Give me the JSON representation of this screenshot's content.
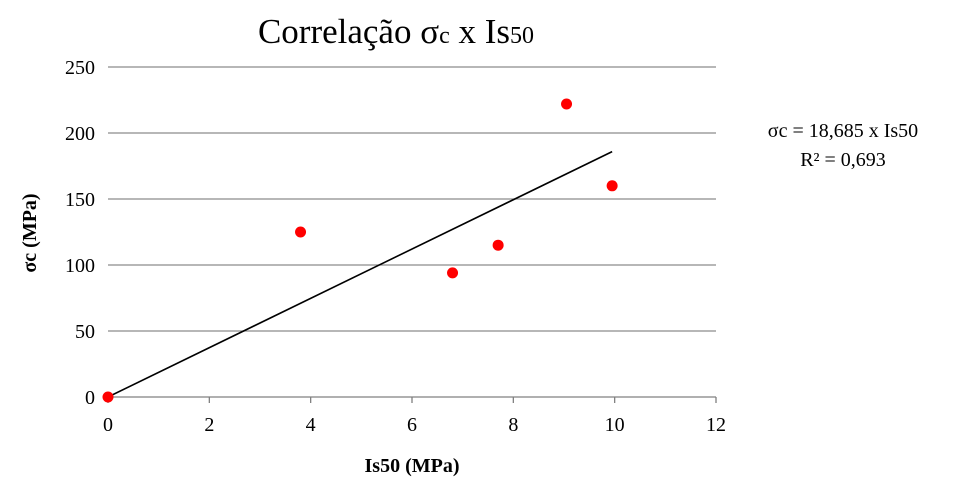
{
  "chart_data": {
    "type": "scatter",
    "title_parts": [
      {
        "text": "Correlação ",
        "style": "main"
      },
      {
        "text": "σ",
        "style": "main"
      },
      {
        "text": "c",
        "style": "sub"
      },
      {
        "text": " x Is",
        "style": "main"
      },
      {
        "text": "50",
        "style": "sub"
      }
    ],
    "xlabel": "Is50 (MPa)",
    "ylabel": "σc (MPa)",
    "xlim": [
      0,
      12
    ],
    "ylim": [
      0,
      250
    ],
    "x_ticks": [
      "0",
      "2",
      "4",
      "6",
      "8",
      "10",
      "12"
    ],
    "y_ticks": [
      "0",
      "50",
      "100",
      "150",
      "200",
      "250"
    ],
    "grid": "horizontal",
    "marker_color": "#ff0000",
    "points": [
      {
        "x": 0,
        "y": 0
      },
      {
        "x": 3.8,
        "y": 125
      },
      {
        "x": 6.8,
        "y": 94
      },
      {
        "x": 7.7,
        "y": 115
      },
      {
        "x": 9.05,
        "y": 222
      },
      {
        "x": 9.95,
        "y": 160
      }
    ],
    "trendline": {
      "x": [
        0,
        9.95
      ],
      "y": [
        0,
        185.9
      ],
      "color": "#000000"
    },
    "equation_text": "σc = 18,685 x Is50",
    "r2_text": "R² = 0,693"
  }
}
